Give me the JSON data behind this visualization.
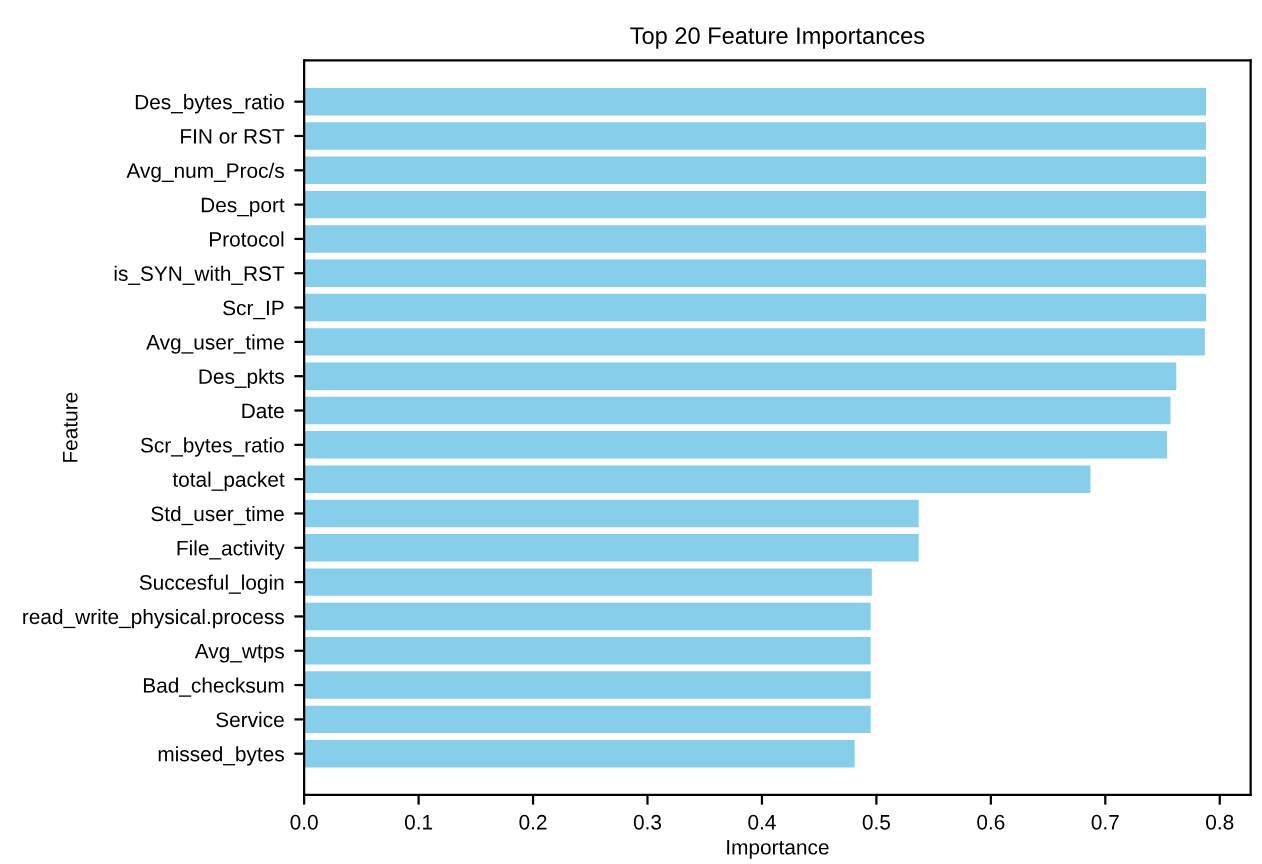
{
  "chart_data": {
    "type": "bar",
    "orientation": "horizontal",
    "title": "Top 20 Feature Importances",
    "xlabel": "Importance",
    "ylabel": "Feature",
    "categories": [
      "Des_bytes_ratio",
      "FIN or RST",
      "Avg_num_Proc/s",
      "Des_port",
      "Protocol",
      "is_SYN_with_RST",
      "Scr_IP",
      "Avg_user_time",
      "Des_pkts",
      "Date",
      "Scr_bytes_ratio",
      "total_packet",
      "Std_user_time",
      "File_activity",
      "Succesful_login",
      "read_write_physical.process",
      "Avg_wtps",
      "Bad_checksum",
      "Service",
      "missed_bytes"
    ],
    "values": [
      0.788,
      0.788,
      0.788,
      0.788,
      0.788,
      0.788,
      0.788,
      0.787,
      0.762,
      0.757,
      0.754,
      0.687,
      0.537,
      0.537,
      0.496,
      0.495,
      0.495,
      0.495,
      0.495,
      0.481
    ],
    "color": "#87ceeb",
    "xlim": [
      0,
      0.827
    ],
    "xticks": [
      {
        "value": 0,
        "label": "0.0"
      },
      0.1,
      0.2,
      0.3,
      0.4,
      0.5,
      0.6,
      0.7,
      0.8
    ],
    "grid": false
  }
}
